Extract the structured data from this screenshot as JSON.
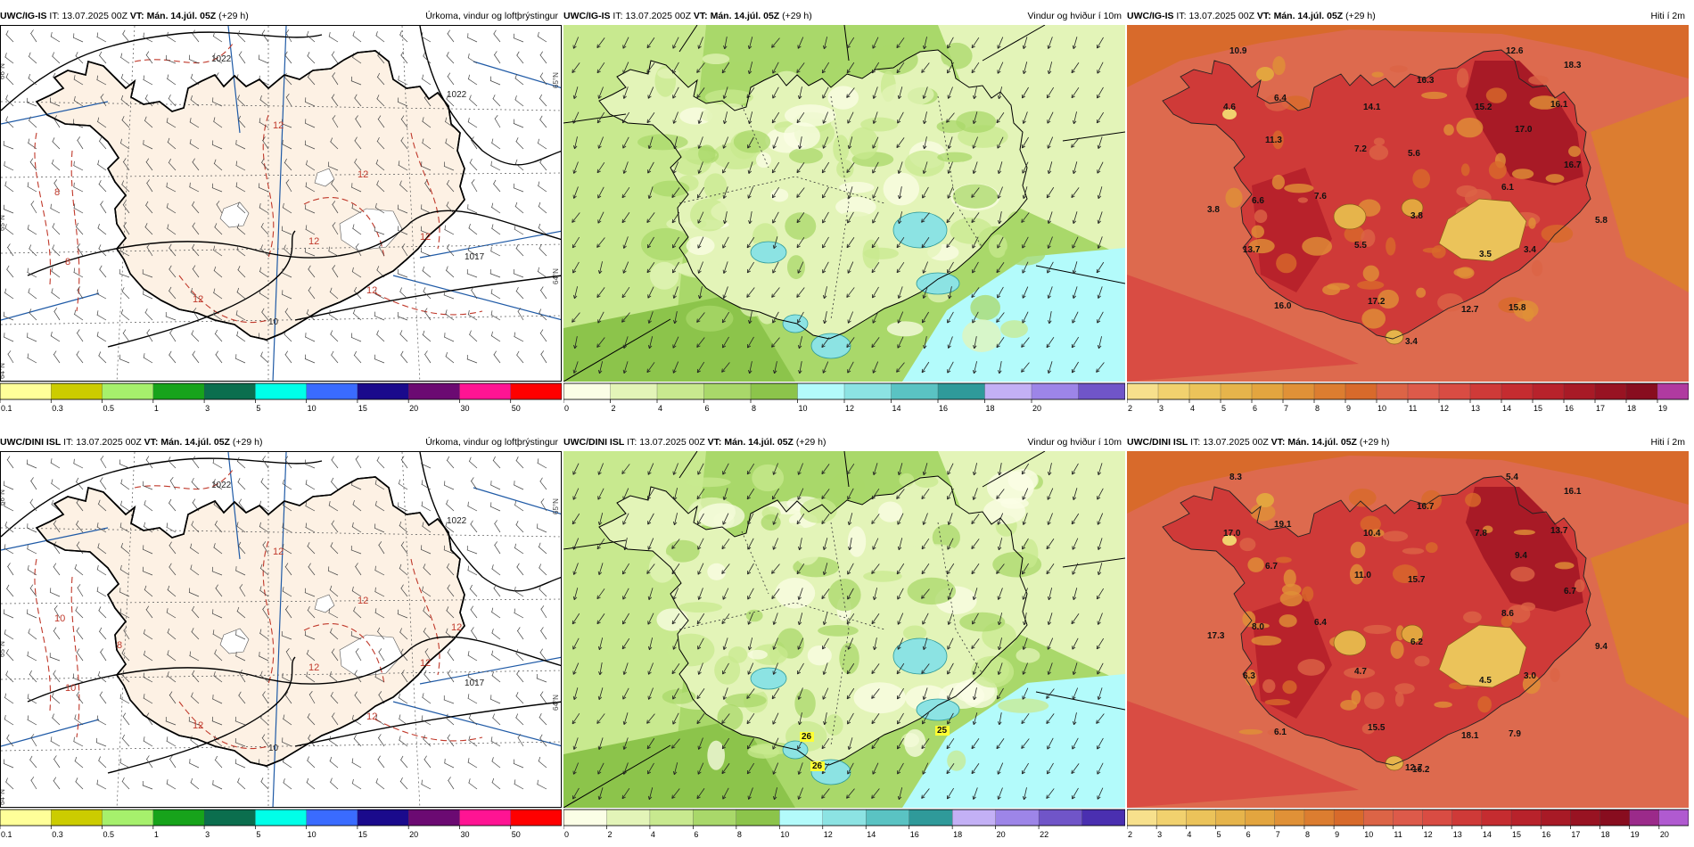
{
  "colors": {
    "land_precip": "#fdf1e4",
    "sea_precip": "#ffffff",
    "isobar": "#000000",
    "precip_contour": "#c0392b",
    "meridian": "#1f5aa6"
  },
  "icons": {
    "wind_barb": "wind-barb-icon",
    "wind_arrow": "wind-arrow-icon"
  },
  "rows": [
    {
      "panels": [
        {
          "type": "precip",
          "model": "UWC/IG-IS",
          "it_prefix": "IT:",
          "it_value": "13.07.2025 00Z",
          "vt_label": "VT: Mán. 14.júl. 05Z",
          "lead": "(+29 h)",
          "product": "Úrkoma, vindur og loftþrýstingur",
          "isobar_labels": [
            "1022",
            "1022",
            "1017",
            "10"
          ],
          "precip_labels": [
            "12",
            "12",
            "12",
            "12",
            "8",
            "8",
            "12",
            "12"
          ],
          "lat_labels": [
            "66°N",
            "65°N",
            "64°N",
            "64°N",
            "65°N"
          ],
          "colorbar": {
            "ticks": [
              "0.1",
              "0.3",
              "0.5",
              "1",
              "3",
              "5",
              "10",
              "15",
              "20",
              "30",
              "50"
            ],
            "colors": [
              "#ffff99",
              "#cccc00",
              "#a6f06c",
              "#17a31b",
              "#0b6e4e",
              "#00ffe8",
              "#3a6bff",
              "#1a0a8c",
              "#6b0a72",
              "#ff1493",
              "#ff0000"
            ]
          }
        },
        {
          "type": "wind",
          "model": "UWC/IG-IS",
          "it_prefix": "IT:",
          "it_value": "13.07.2025 00Z",
          "vt_label": "VT: Mán. 14.júl. 05Z",
          "lead": "(+29 h)",
          "product": "Vindur og hviður í 10m",
          "colorbar": {
            "ticks": [
              "0",
              "2",
              "4",
              "6",
              "8",
              "10",
              "12",
              "14",
              "16",
              "18",
              "20"
            ],
            "colors": [
              "#fbfee6",
              "#e3f4b8",
              "#c8e98f",
              "#a9d86a",
              "#8cc44b",
              "#b3fbfb",
              "#8ce3e3",
              "#5ac3c3",
              "#2f9a9a",
              "#c3b0f5",
              "#9d85e8",
              "#7055c8"
            ]
          }
        },
        {
          "type": "temp",
          "model": "UWC/IG-IS",
          "it_prefix": "IT:",
          "it_value": "13.07.2025 00Z",
          "vt_label": "VT: Mán. 14.júl. 05Z",
          "lead": "(+29 h)",
          "product": "Hiti í 2m",
          "temp_labels": [
            "10.9",
            "12.6",
            "18.3",
            "4.6",
            "6.4",
            "16.3",
            "14.1",
            "15.2",
            "16.1",
            "17.0",
            "11.3",
            "7.2",
            "5.6",
            "16.7",
            "6.1",
            "6.6",
            "7.6",
            "3.8",
            "3.8",
            "5.5",
            "13.7",
            "3.5",
            "3.4",
            "5.8",
            "16.0",
            "17.2",
            "12.7",
            "15.8",
            "3.4"
          ],
          "colorbar": {
            "ticks": [
              "2",
              "3",
              "4",
              "5",
              "6",
              "7",
              "8",
              "9",
              "10",
              "11",
              "12",
              "13",
              "14",
              "15",
              "16",
              "17",
              "18",
              "19"
            ],
            "colors": [
              "#f7e08c",
              "#f1d16e",
              "#ebc35a",
              "#e6b44b",
              "#e3a53f",
              "#e09137",
              "#dc7d30",
              "#d86a2b",
              "#dc6446",
              "#dd5a4a",
              "#d94c43",
              "#cf3a38",
              "#c52c30",
              "#b8222b",
              "#a81a26",
              "#981322",
              "#880d1f",
              "#b03aa0"
            ]
          }
        }
      ]
    },
    {
      "panels": [
        {
          "type": "precip",
          "model": "UWC/DINI ISL",
          "it_prefix": "IT:",
          "it_value": "13.07.2025 00Z",
          "vt_label": "VT: Mán. 14.júl. 05Z",
          "lead": "(+29 h)",
          "product": "Úrkoma, vindur og loftþrýstingur",
          "isobar_labels": [
            "1022",
            "1022",
            "1017",
            "10"
          ],
          "precip_labels": [
            "12",
            "12",
            "12",
            "12",
            "10",
            "10",
            "12",
            "12",
            "8",
            "12"
          ],
          "lat_labels": [
            "66°N",
            "65°N",
            "64°N",
            "64°N",
            "65°N"
          ],
          "colorbar": {
            "ticks": [
              "0.1",
              "0.3",
              "0.5",
              "1",
              "3",
              "5",
              "10",
              "15",
              "20",
              "30",
              "50"
            ],
            "colors": [
              "#ffff99",
              "#cccc00",
              "#a6f06c",
              "#17a31b",
              "#0b6e4e",
              "#00ffe8",
              "#3a6bff",
              "#1a0a8c",
              "#6b0a72",
              "#ff1493",
              "#ff0000"
            ]
          }
        },
        {
          "type": "wind",
          "model": "UWC/DINI ISL",
          "it_prefix": "IT:",
          "it_value": "13.07.2025 00Z",
          "vt_label": "VT: Mán. 14.júl. 05Z",
          "lead": "(+29 h)",
          "product": "Vindur og hviður í 10m",
          "gust_labels": [
            "26",
            "25",
            "26"
          ],
          "colorbar": {
            "ticks": [
              "0",
              "2",
              "4",
              "6",
              "8",
              "10",
              "12",
              "14",
              "16",
              "18",
              "20",
              "22"
            ],
            "colors": [
              "#fbfee6",
              "#e3f4b8",
              "#c8e98f",
              "#a9d86a",
              "#8cc44b",
              "#b3fbfb",
              "#8ce3e3",
              "#5ac3c3",
              "#2f9a9a",
              "#c3b0f5",
              "#9d85e8",
              "#7055c8",
              "#4a2fb0"
            ]
          }
        },
        {
          "type": "temp",
          "model": "UWC/DINI ISL",
          "it_prefix": "IT:",
          "it_value": "13.07.2025 00Z",
          "vt_label": "VT: Mán. 14.júl. 05Z",
          "lead": "(+29 h)",
          "product": "Hiti í 2m",
          "temp_labels": [
            "8.3",
            "5.4",
            "16.1",
            "17.0",
            "19.1",
            "16.7",
            "10.4",
            "7.8",
            "13.7",
            "9.4",
            "6.7",
            "11.0",
            "15.7",
            "6.7",
            "8.6",
            "8.0",
            "6.4",
            "17.3",
            "6.2",
            "4.7",
            "6.3",
            "4.5",
            "3.0",
            "9.4",
            "6.1",
            "15.5",
            "18.1",
            "7.9",
            "12.7",
            "16.2"
          ],
          "colorbar": {
            "ticks": [
              "2",
              "3",
              "4",
              "5",
              "6",
              "7",
              "8",
              "9",
              "10",
              "11",
              "12",
              "13",
              "14",
              "15",
              "16",
              "17",
              "18",
              "19",
              "20"
            ],
            "colors": [
              "#f7e08c",
              "#f1d16e",
              "#ebc35a",
              "#e6b44b",
              "#e3a53f",
              "#e09137",
              "#dc7d30",
              "#d86a2b",
              "#dc6446",
              "#dd5a4a",
              "#d94c43",
              "#cf3a38",
              "#c52c30",
              "#b8222b",
              "#a81a26",
              "#981322",
              "#880d1f",
              "#9b2a8a",
              "#b05ad0"
            ]
          }
        }
      ]
    }
  ]
}
